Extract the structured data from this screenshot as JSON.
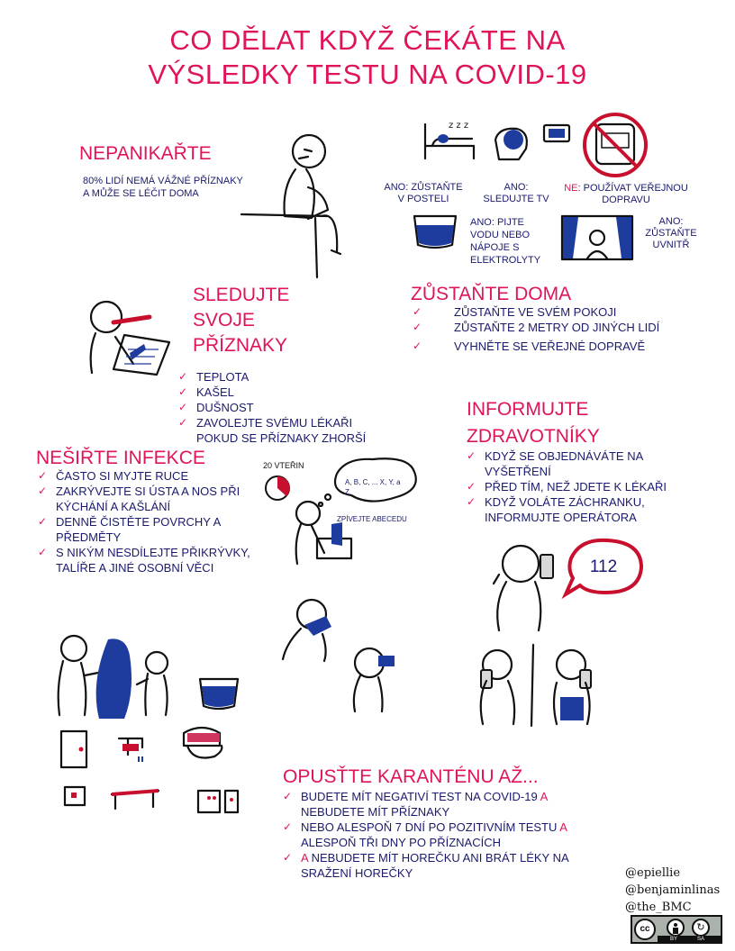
{
  "title": {
    "line1": "CO DĚLAT KDYŽ ČEKÁTE NA",
    "line2": "VÝSLEDKY TESTU NA COVID-19"
  },
  "panic": {
    "heading": "NEPANIKAŘTE",
    "text": "80% LIDÍ NEMÁ VÁŽNÉ PŘÍZNAKY A MŮŽE SE LÉČIT DOMA"
  },
  "home_icons": {
    "bed": "ANO: ZŮSTAŇTE V POSTELI",
    "tv": "ANO: SLEDUJTE TV",
    "transport_no": "NE",
    "transport": ": POUŽÍVAT VEŘEJNOU DOPRAVU",
    "drink": "ANO: PIJTE VODU NEBO NÁPOJE S ELEKTROLYTY",
    "inside": "ANO: ZŮSTAŇTE UVNITŘ"
  },
  "symptoms": {
    "heading_lines": [
      "SLEDUJTE",
      "SVOJE",
      "PŘÍZNAKY"
    ],
    "items": [
      "TEPLOTA",
      "KAŠEL",
      "DUŠNOST",
      "ZAVOLEJTE SVÉMU LÉKAŘI POKUD SE PŘÍZNAKY ZHORŠÍ"
    ]
  },
  "stay_home": {
    "heading": "ZŮSTAŇTE DOMA",
    "items": [
      "ZŮSTAŇTE VE SVÉM POKOJI",
      "ZŮSTAŇTE 2 METRY OD JINÝCH LIDÍ",
      "VYHNĚTE SE VEŘEJNÉ DOPRAVĚ"
    ]
  },
  "inform": {
    "heading_lines": [
      "INFORMUJTE",
      "ZDRAVOTNÍKY"
    ],
    "items": [
      "KDYŽ SE OBJEDNÁVÁTE NA VYŠETŘENÍ",
      "PŘED TÍM, NEŽ JDETE K LÉKAŘI",
      "KDYŽ VOLÁTE ZÁCHRANKU, INFORMUJTE OPERÁTORA"
    ],
    "phone_number": "112"
  },
  "infection": {
    "heading": "NEŠIŘTE INFEKCE",
    "items": [
      "ČASTO SI MYJTE RUCE",
      "ZAKRÝVEJTE SI ÚSTA A NOS PŘI KÝCHÁNÍ A KAŠLÁNÍ",
      "DENNĚ ČISTĚTE POVRCHY A PŘEDMĚTY",
      "S NIKÝM NESDÍLEJTE PŘIKRÝVKY, TALÍŘE A JINÉ OSOBNÍ VĚCI"
    ]
  },
  "handwash": {
    "timer": "20 VTEŘIN",
    "bubble": "A, B, C, ... X, Y, a Z",
    "caption": "ZPÍVEJTE ABECEDU"
  },
  "quarantine": {
    "heading": "OPUSŤTE KARANTÉNU AŽ...",
    "items": [
      {
        "text": "BUDETE MÍT NEGATIVÍ TEST NA COVID-19 ",
        "accent": "A",
        "rest": " NEBUDETE MÍT PŘÍZNAKY"
      },
      {
        "text": "NEBO ALESPOŇ 7 DNÍ PO POZITIVNÍM TESTU ",
        "accent": "A",
        "rest": " ALESPOŇ TŘI DNY PO PŘÍZNACÍCH"
      },
      {
        "text": "",
        "accent": "A",
        "rest": " NEBUDETE MÍT HOREČKU ANI BRÁT LÉKY NA SRAŽENÍ HOREČKY"
      }
    ]
  },
  "credits": {
    "handles": [
      "@epiellie",
      "@benjaminlinas",
      "@the_BMC"
    ],
    "license_cc": "cc",
    "license_by": "BY",
    "license_sa": "SA"
  },
  "colors": {
    "accent": "#e0145a",
    "text": "#1a1a6e",
    "ink_blue": "#1e3c9e"
  }
}
